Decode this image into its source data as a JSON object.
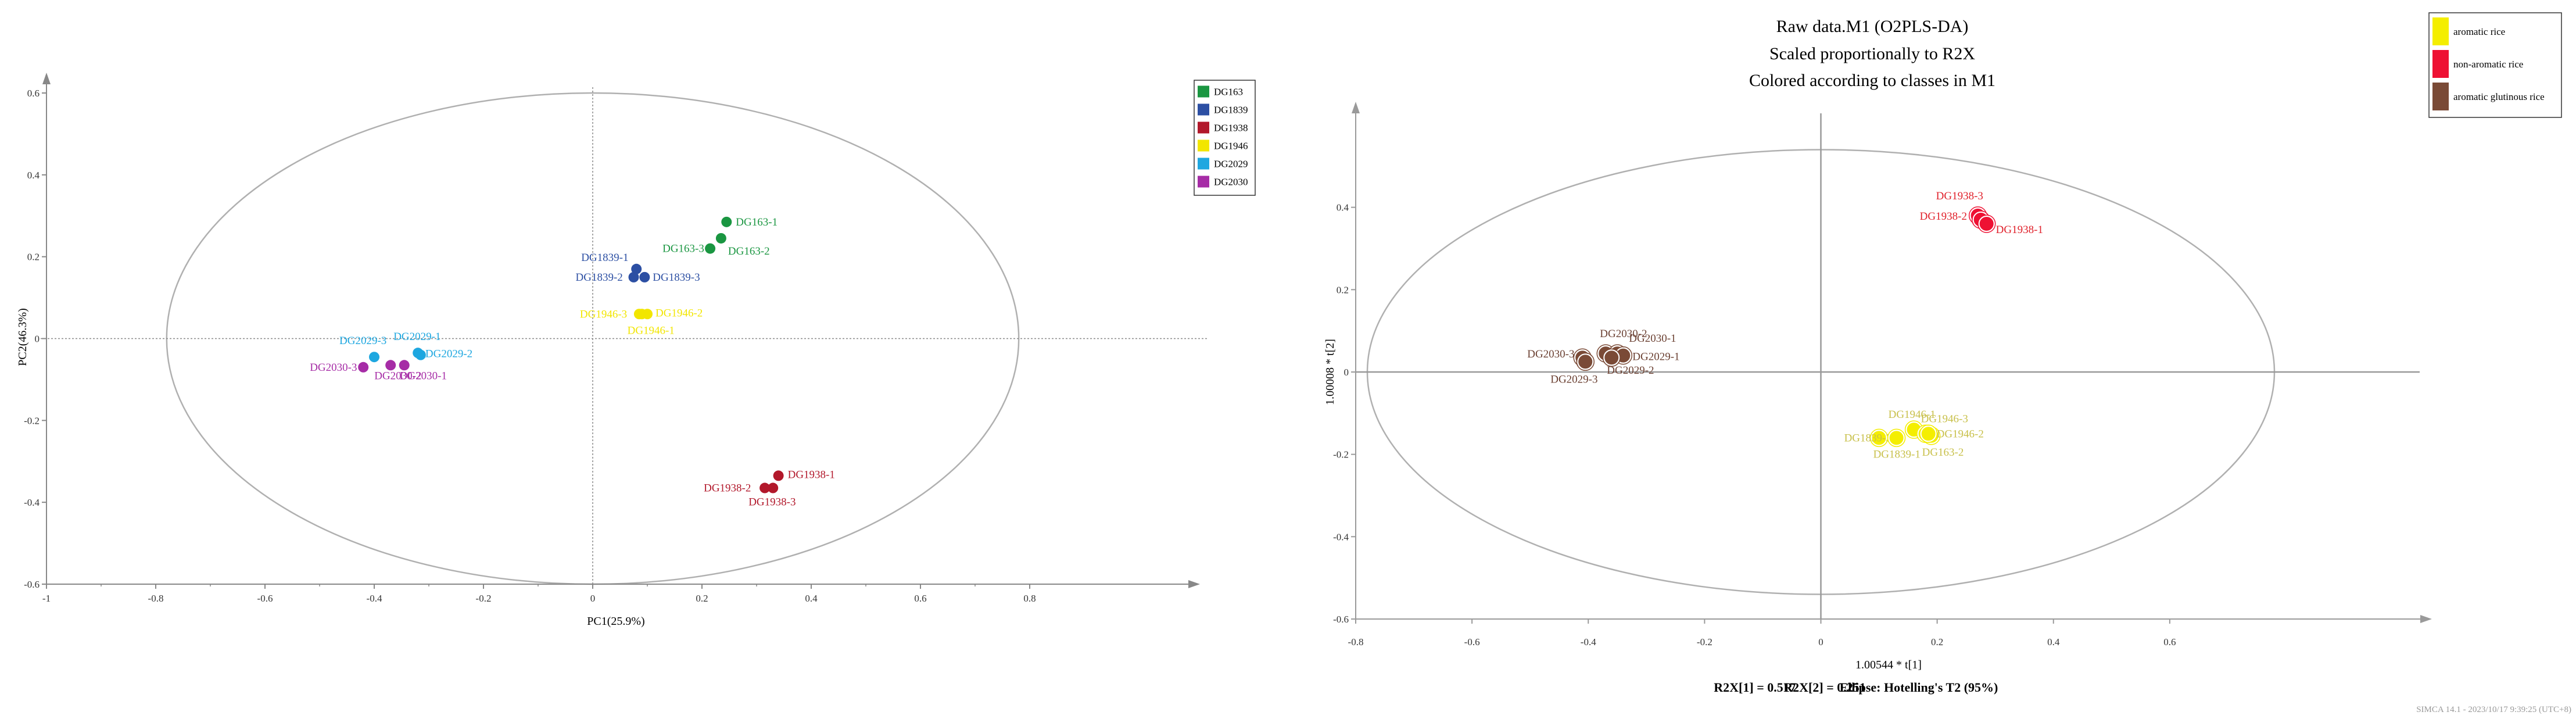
{
  "chart_data": [
    {
      "type": "scatter",
      "title": "",
      "xlabel": "PC1(25.9%)",
      "ylabel": "PC2(46.3%)",
      "xlim": [
        -1,
        1
      ],
      "ylim": [
        -0.6,
        0.6
      ],
      "xticks": [
        "-1",
        "-0.8",
        "-0.6",
        "-0.4",
        "-0.2",
        "0",
        "0.2",
        "0.4",
        "0.6",
        "0.8"
      ],
      "xtick_values": [
        -1,
        -0.8,
        -0.6,
        -0.4,
        -0.2,
        0,
        0.2,
        0.4,
        0.6,
        0.8
      ],
      "yticks": [
        "0.6",
        "0.4",
        "0.2",
        "0",
        "-0.2",
        "-0.4",
        "-0.6"
      ],
      "ytick_values": [
        0.6,
        0.4,
        0.2,
        0,
        -0.2,
        -0.4,
        -0.6
      ],
      "ellipse": {
        "rx": 0.78,
        "ry": 0.6
      },
      "legend_position": "top-right",
      "grid": false,
      "series": [
        {
          "name": "DG163",
          "color": "#1a9641",
          "points": [
            {
              "label": "DG163-1",
              "x": 0.245,
              "y": 0.285
            },
            {
              "label": "DG163-2",
              "x": 0.235,
              "y": 0.245
            },
            {
              "label": "DG163-3",
              "x": 0.215,
              "y": 0.22
            }
          ]
        },
        {
          "name": "DG1839",
          "color": "#2c4fa3",
          "points": [
            {
              "label": "DG1839-1",
              "x": 0.08,
              "y": 0.17
            },
            {
              "label": "DG1839-2",
              "x": 0.075,
              "y": 0.15
            },
            {
              "label": "DG1839-3",
              "x": 0.095,
              "y": 0.15
            }
          ]
        },
        {
          "name": "DG1938",
          "color": "#b2182b",
          "points": [
            {
              "label": "DG1938-1",
              "x": 0.34,
              "y": -0.335
            },
            {
              "label": "DG1938-2",
              "x": 0.315,
              "y": -0.365
            },
            {
              "label": "DG1938-3",
              "x": 0.33,
              "y": -0.365
            }
          ]
        },
        {
          "name": "DG1946",
          "color": "#f2e600",
          "points": [
            {
              "label": "DG1946-1",
              "x": 0.09,
              "y": 0.06
            },
            {
              "label": "DG1946-2",
              "x": 0.1,
              "y": 0.06
            },
            {
              "label": "DG1946-3",
              "x": 0.085,
              "y": 0.06
            }
          ]
        },
        {
          "name": "DG2029",
          "color": "#1ea7e0",
          "points": [
            {
              "label": "DG2029-1",
              "x": -0.32,
              "y": -0.035
            },
            {
              "label": "DG2029-2",
              "x": -0.315,
              "y": -0.04
            },
            {
              "label": "DG2029-3",
              "x": -0.4,
              "y": -0.045
            }
          ]
        },
        {
          "name": "DG2030",
          "color": "#a62ca6",
          "points": [
            {
              "label": "DG2030-1",
              "x": -0.345,
              "y": -0.065
            },
            {
              "label": "DG2030-2",
              "x": -0.37,
              "y": -0.065
            },
            {
              "label": "DG2030-3",
              "x": -0.42,
              "y": -0.07
            }
          ]
        }
      ]
    },
    {
      "type": "scatter",
      "title": "Raw data.M1 (O2PLS-DA)",
      "subtitle": [
        "Scaled proportionally to R2X",
        "Colored according to classes in M1"
      ],
      "xlabel": "1.00544 * t[1]",
      "ylabel": "1.00008 * t[2]",
      "xlim": [
        -0.8,
        0.8
      ],
      "ylim": [
        -0.6,
        0.6
      ],
      "xticks": [
        "-0.8",
        "-0.6",
        "-0.4",
        "-0.2",
        "0",
        "0.2",
        "0.4",
        "0.6"
      ],
      "xtick_values": [
        -0.8,
        -0.6,
        -0.4,
        -0.2,
        0,
        0.2,
        0.4,
        0.6
      ],
      "yticks": [
        "0.4",
        "0.2",
        "0",
        "-0.2",
        "-0.4",
        "-0.6"
      ],
      "ytick_values": [
        0.4,
        0.2,
        0,
        -0.2,
        -0.4,
        -0.6
      ],
      "ellipse": {
        "rx": 0.78,
        "ry": 0.54
      },
      "legend_position": "top-right",
      "grid": false,
      "stats": [
        "R2X[1] = 0.517",
        "R2X[2] = 0.251",
        "Ellipse: Hotelling's T2 (95%)"
      ],
      "footer": "SIMCA 14.1 - 2023/10/17 9:39:25 (UTC+8)",
      "series": [
        {
          "name": "aromatic rice",
          "color": "#f4ee00",
          "label_color": "#c8c04a",
          "points": [
            {
              "label": "DG1839-3",
              "x": 0.1,
              "y": -0.16
            },
            {
              "label": "DG1839-1",
              "x": 0.13,
              "y": -0.16
            },
            {
              "label": "DG1946-1",
              "x": 0.16,
              "y": -0.14
            },
            {
              "label": "DG1946-3",
              "x": 0.18,
              "y": -0.15
            },
            {
              "label": "DG163-2",
              "x": 0.19,
              "y": -0.155
            },
            {
              "label": "DG1946-2",
              "x": 0.185,
              "y": -0.15
            }
          ]
        },
        {
          "name": "non-aromatic rice",
          "color": "#ee1133",
          "label_color": "#e0202a",
          "points": [
            {
              "label": "DG1938-3",
              "x": 0.27,
              "y": 0.38
            },
            {
              "label": "DG1938-2",
              "x": 0.275,
              "y": 0.37
            },
            {
              "label": "DG1938-1",
              "x": 0.285,
              "y": 0.36
            }
          ]
        },
        {
          "name": "aromatic glutinous rice",
          "color": "#7a4a36",
          "label_color": "#6b4032",
          "points": [
            {
              "label": "DG2030-3",
              "x": -0.41,
              "y": 0.035
            },
            {
              "label": "DG2030-2",
              "x": -0.37,
              "y": 0.045
            },
            {
              "label": "DG2030-1",
              "x": -0.35,
              "y": 0.045
            },
            {
              "label": "DG2029-1",
              "x": -0.34,
              "y": 0.04
            },
            {
              "label": "DG2029-2",
              "x": -0.36,
              "y": 0.035
            },
            {
              "label": "DG2029-3",
              "x": -0.405,
              "y": 0.025
            }
          ]
        }
      ]
    }
  ]
}
